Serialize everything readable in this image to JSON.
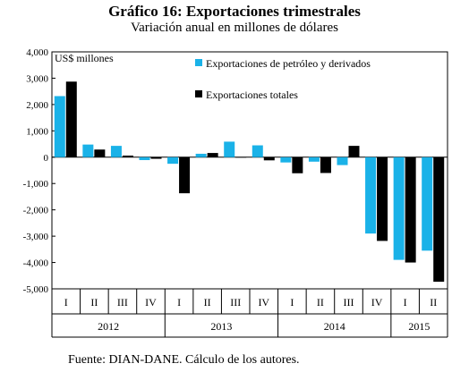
{
  "title": "Gráfico 16: Exportaciones trimestrales",
  "subtitle": "Variación anual en millones de dólares",
  "source": "Fuente: DIAN-DANE. Cálculo de los autores.",
  "chart_data": {
    "type": "bar",
    "unit_label": "US$ millones",
    "categories": [
      "I",
      "II",
      "III",
      "IV",
      "I",
      "II",
      "III",
      "IV",
      "I",
      "II",
      "III",
      "IV",
      "I",
      "II"
    ],
    "years": [
      {
        "label": "2012",
        "count": 4
      },
      {
        "label": "2013",
        "count": 4
      },
      {
        "label": "2014",
        "count": 4
      },
      {
        "label": "2015",
        "count": 2
      }
    ],
    "series": [
      {
        "name": "Exportaciones de petróleo y derivados",
        "color": "#1ab2e8",
        "values": [
          2320,
          480,
          430,
          -110,
          -250,
          130,
          590,
          450,
          -200,
          -170,
          -300,
          -2900,
          -3900,
          -3550
        ]
      },
      {
        "name": "Exportaciones totales",
        "color": "#000000",
        "values": [
          2870,
          290,
          60,
          -60,
          -1370,
          160,
          0,
          -120,
          -610,
          -600,
          430,
          -3180,
          -4000,
          -4730
        ]
      }
    ],
    "ylim": [
      -5000,
      4000
    ],
    "yticks": [
      4000,
      3000,
      2000,
      1000,
      0,
      -1000,
      -2000,
      -3000,
      -4000,
      -5000
    ],
    "ytick_labels": [
      "4,000",
      "3,000",
      "2,000",
      "1,000",
      "0",
      "-1,000",
      "-2,000",
      "-3,000",
      "-4,000",
      "-5,000"
    ],
    "legend": "top-right",
    "grid": false
  }
}
